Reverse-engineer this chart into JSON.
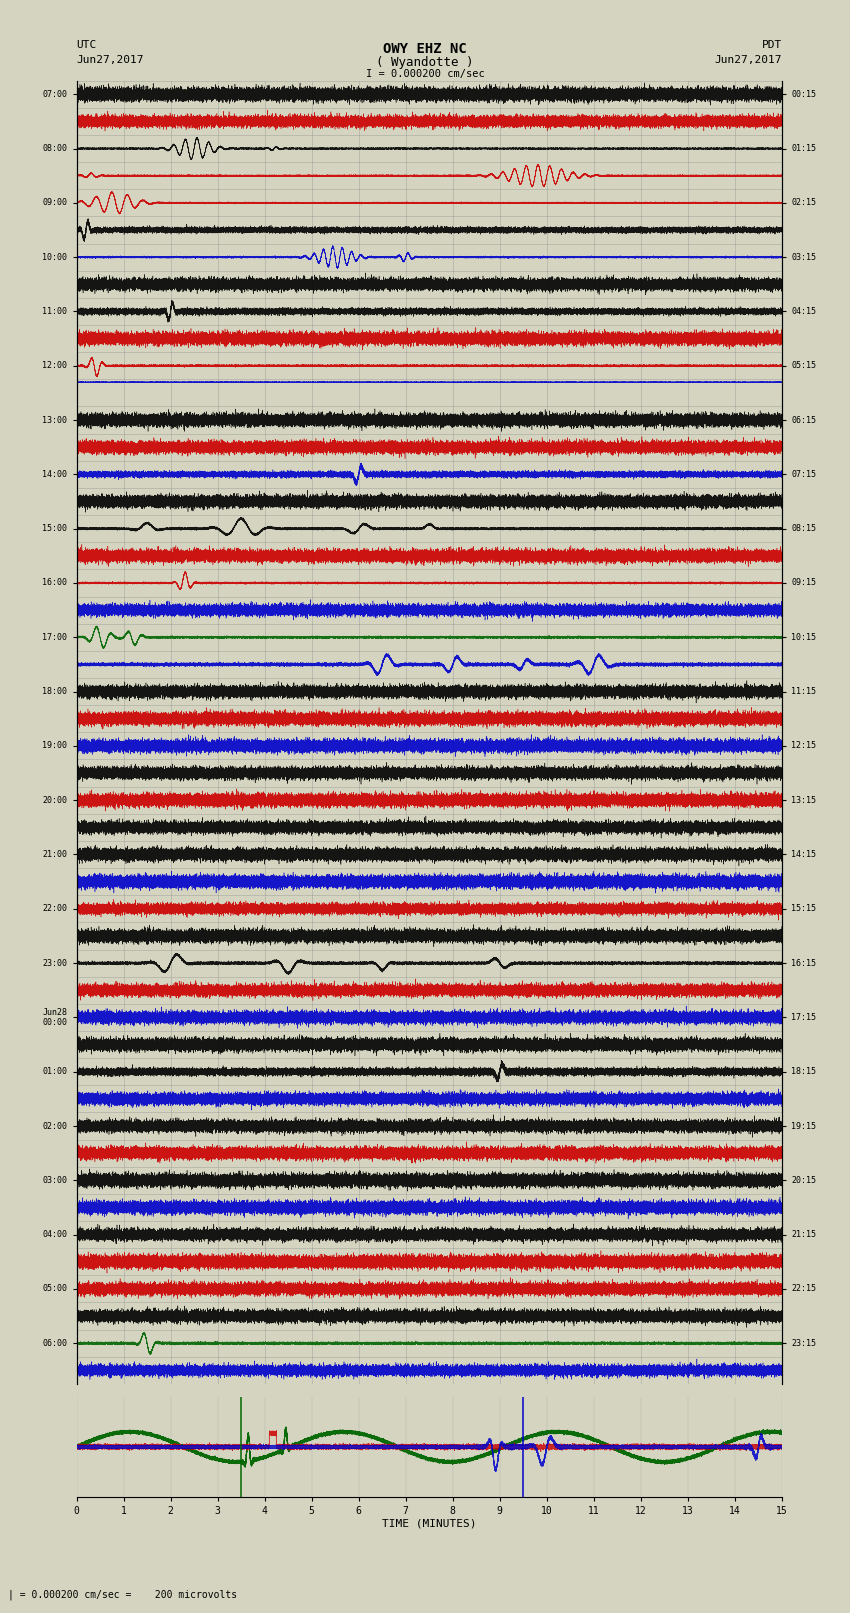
{
  "title_line1": "OWY EHZ NC",
  "title_line2": "( Wyandotte )",
  "scale_label": "I = 0.000200 cm/sec",
  "left_header": "UTC",
  "left_date": "Jun27,2017",
  "right_header": "PDT",
  "right_date": "Jun27,2017",
  "bottom_label": "TIME (MINUTES)",
  "bottom_note": "| = 0.000200 cm/sec =    200 microvolts",
  "background_color": "#d4d4c0",
  "trace_color_black": "#000000",
  "trace_color_red": "#cc0000",
  "trace_color_blue": "#0000cc",
  "trace_color_green": "#006600",
  "grid_color": "#888888",
  "num_traces": 48,
  "minutes_per_trace": 15,
  "utc_labels_even": [
    "07:00",
    "08:00",
    "09:00",
    "10:00",
    "11:00",
    "12:00",
    "13:00",
    "14:00",
    "15:00",
    "16:00",
    "17:00",
    "18:00",
    "19:00",
    "20:00",
    "21:00",
    "22:00",
    "23:00",
    "Jun28\n00:00",
    "01:00",
    "02:00",
    "03:00",
    "04:00",
    "05:00",
    "06:00"
  ],
  "pdt_labels_even": [
    "00:15",
    "01:15",
    "02:15",
    "03:15",
    "04:15",
    "05:15",
    "06:15",
    "07:15",
    "08:15",
    "09:15",
    "10:15",
    "11:15",
    "12:15",
    "13:15",
    "14:15",
    "15:15",
    "16:15",
    "17:15",
    "18:15",
    "19:15",
    "20:15",
    "21:15",
    "22:15",
    "23:15"
  ],
  "xticks": [
    0,
    1,
    2,
    3,
    4,
    5,
    6,
    7,
    8,
    9,
    10,
    11,
    12,
    13,
    14,
    15
  ]
}
